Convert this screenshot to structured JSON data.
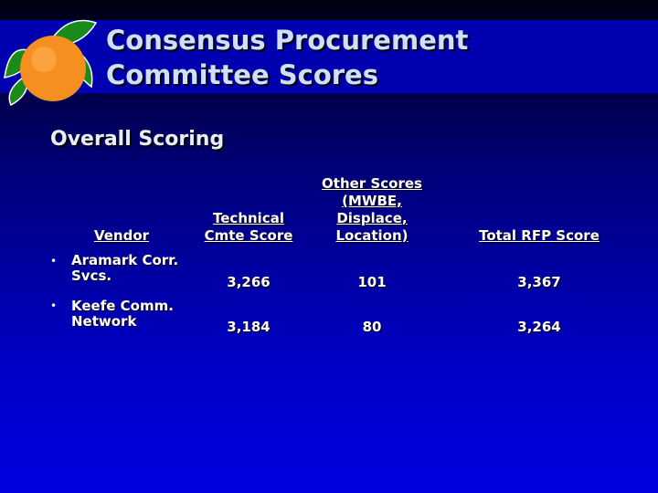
{
  "header": {
    "title": [
      "Consensus Procurement",
      "Committee Scores"
    ],
    "subtitle": "Overall Scoring"
  },
  "table": {
    "columns": [
      "Vendor",
      "Technical Cmte Score",
      "Other Scores (MWBE, Displace, Location)",
      "Total RFP Score"
    ],
    "rows": [
      [
        "Aramark Corr. Svcs.",
        "3,266",
        "101",
        "3,367"
      ],
      [
        "Keefe Comm. Network",
        "3,184",
        "80",
        "3,264"
      ]
    ]
  }
}
